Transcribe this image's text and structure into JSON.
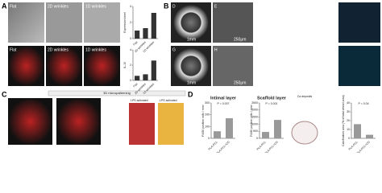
{
  "panels": {
    "A": {
      "label": "A",
      "images": [
        "Flat",
        "2D wrinkles",
        "1D wrinkles",
        "Flat",
        "2D wrinkles",
        "1D wrinkles"
      ]
    },
    "B": {
      "label": "B",
      "images": [
        "D",
        "E",
        "G",
        "H"
      ],
      "scale_bars": [
        "1mm",
        "250μm",
        "1mm",
        "250μm"
      ]
    },
    "C": {
      "label": "C",
      "header": "3D micropatterning",
      "conditions": [
        "LPS activated",
        "LPS activated"
      ]
    },
    "D": {
      "label": "D",
      "legend": "Ca deposits"
    }
  },
  "charts": [
    {
      "ylabel": "Expression level",
      "categories": [
        "Flat",
        "2D wrinkles",
        "1D wrinkles"
      ],
      "values": [
        1,
        1.3,
        3.2
      ],
      "ylim": [
        0,
        4
      ],
      "yticks": [
        0,
        2,
        4
      ],
      "color": "#333333"
    },
    {
      "ylabel": "IL-10",
      "categories": [
        "Flat",
        "2D wrinkles",
        "1D wrinkles"
      ],
      "values": [
        0.6,
        0.8,
        2.6
      ],
      "ylim": [
        0,
        4
      ],
      "yticks": [
        0,
        2,
        4
      ],
      "color": "#333333"
    },
    {
      "title": "Intimal layer",
      "ylabel": "F4/80 positive cells / mm²",
      "categories": [
        "PLA-PCL",
        "PLA-PCL+CD"
      ],
      "values": [
        60,
        170
      ],
      "ylim": [
        0,
        300
      ],
      "yticks": [
        0,
        100,
        200,
        300
      ],
      "p_value": "P = 0.007",
      "color": "#999999"
    },
    {
      "title": "Scaffold layer",
      "ylabel": "F4/80 positive cells / mm²",
      "categories": [
        "PLA-PCL",
        "PLA-PCL+CD"
      ],
      "values": [
        450,
        1300
      ],
      "ylim": [
        0,
        2500
      ],
      "yticks": [
        0,
        500,
        1000,
        1500,
        2000,
        2500
      ],
      "p_value": "P = 0.001",
      "color": "#999999"
    },
    {
      "ylabel": "Calcification area (% of total vessel area)",
      "categories": [
        "PLA-PCL",
        "PLA-PCL+CD"
      ],
      "values": [
        16,
        4
      ],
      "ylim": [
        0,
        40
      ],
      "yticks": [
        0,
        10,
        20,
        30,
        40
      ],
      "p_value": "P = 0.04",
      "color": "#999999"
    }
  ]
}
